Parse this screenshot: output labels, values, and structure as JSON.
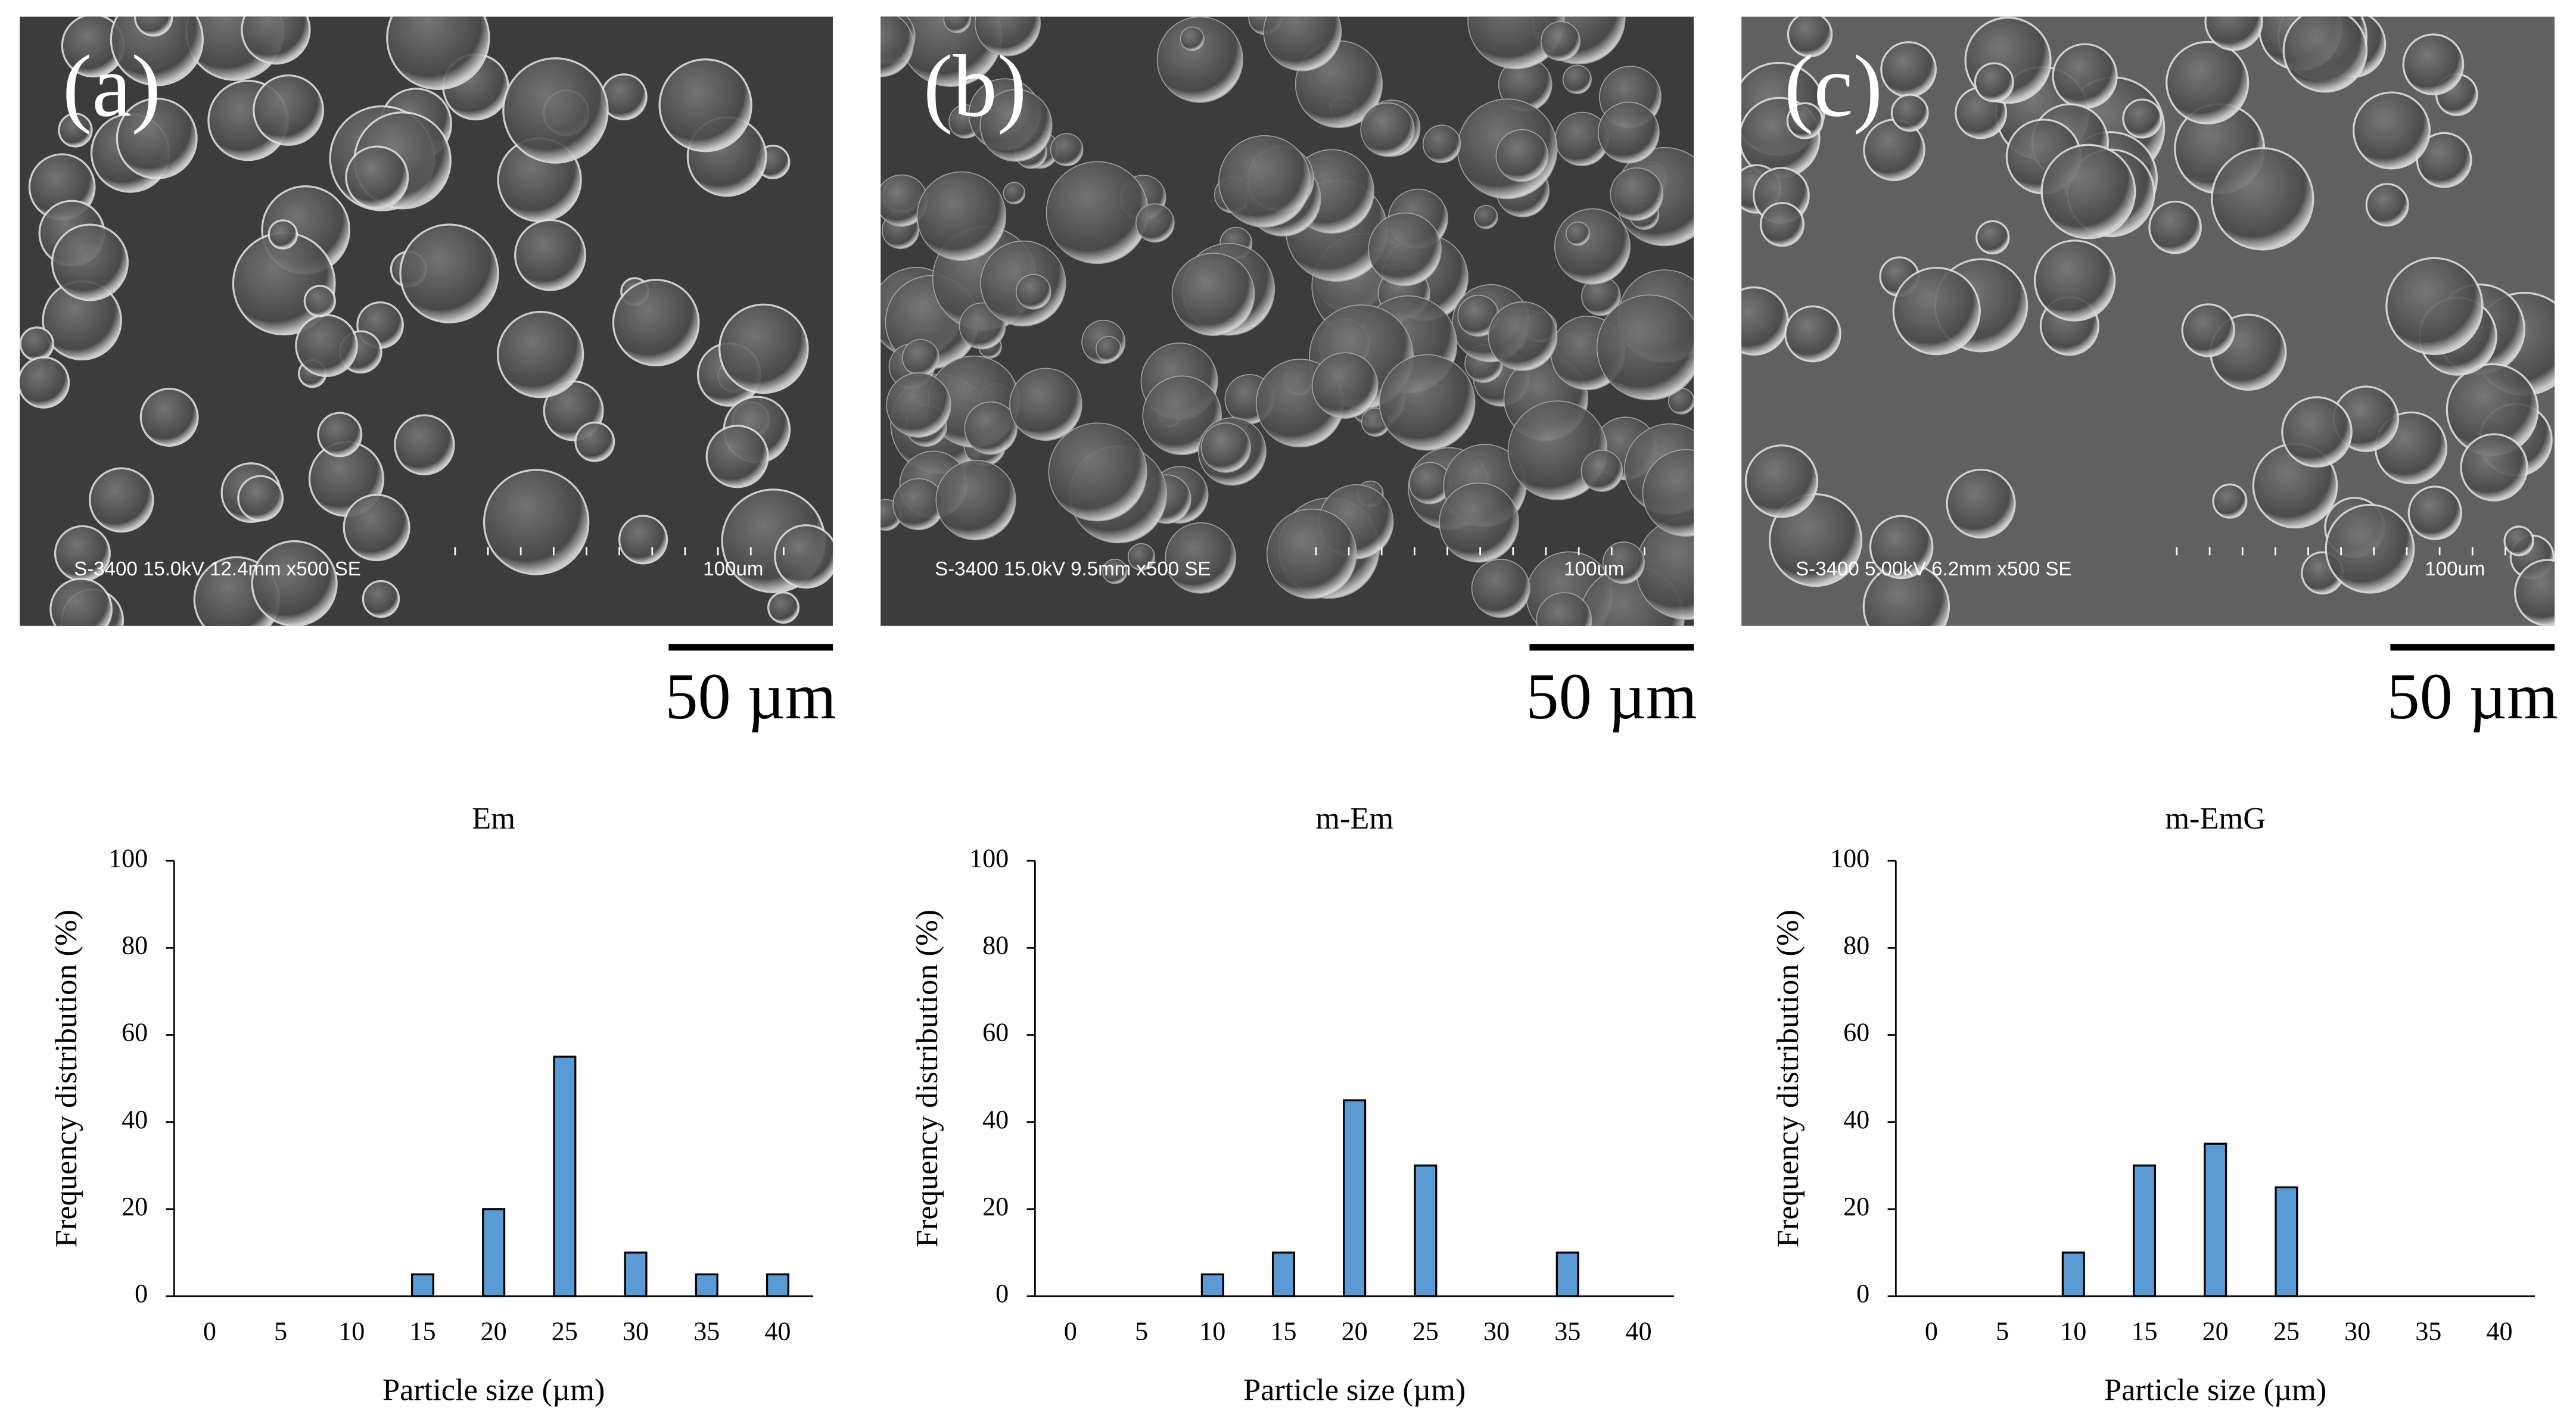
{
  "micrographs": [
    {
      "label": "(a)",
      "info": "S-3400 15.0kV 12.4mm x500 SE",
      "inner_scale": "100um",
      "scale_bar": "50 µm"
    },
    {
      "label": "(b)",
      "info": "S-3400 15.0kV 9.5mm x500 SE",
      "inner_scale": "100um",
      "scale_bar": "50 µm"
    },
    {
      "label": "(c)",
      "info": "S-3400 5.00kV 6.2mm x500 SE",
      "inner_scale": "100um",
      "scale_bar": "50 µm"
    }
  ],
  "chart_data": [
    {
      "type": "bar",
      "title": "Em",
      "x_label": "Particle size (µm)",
      "y_label": "Frequency distribution (%)",
      "categories": [
        "0",
        "5",
        "10",
        "15",
        "20",
        "25",
        "30",
        "35",
        "40"
      ],
      "values": [
        0,
        0,
        0,
        5,
        20,
        55,
        10,
        5,
        5
      ],
      "color": "#5b9bd5",
      "ylim": [
        0,
        100
      ],
      "yticks": [
        0,
        20,
        40,
        60,
        80,
        100
      ]
    },
    {
      "type": "bar",
      "title": "m-Em",
      "x_label": "Particle size (µm)",
      "y_label": "Frequency distribution (%)",
      "categories": [
        "0",
        "5",
        "10",
        "15",
        "20",
        "25",
        "30",
        "35",
        "40"
      ],
      "values": [
        0,
        0,
        5,
        10,
        45,
        30,
        0,
        10,
        0
      ],
      "color": "#5b9bd5",
      "ylim": [
        0,
        100
      ],
      "yticks": [
        0,
        20,
        40,
        60,
        80,
        100
      ]
    },
    {
      "type": "bar",
      "title": "m-EmG",
      "x_label": "Particle size (µm)",
      "y_label": "Frequency distribution (%)",
      "categories": [
        "0",
        "5",
        "10",
        "15",
        "20",
        "25",
        "30",
        "35",
        "40"
      ],
      "values": [
        0,
        0,
        10,
        30,
        35,
        25,
        0,
        0,
        0
      ],
      "color": "#5b9bd5",
      "ylim": [
        0,
        100
      ],
      "yticks": [
        0,
        20,
        40,
        60,
        80,
        100
      ]
    }
  ]
}
